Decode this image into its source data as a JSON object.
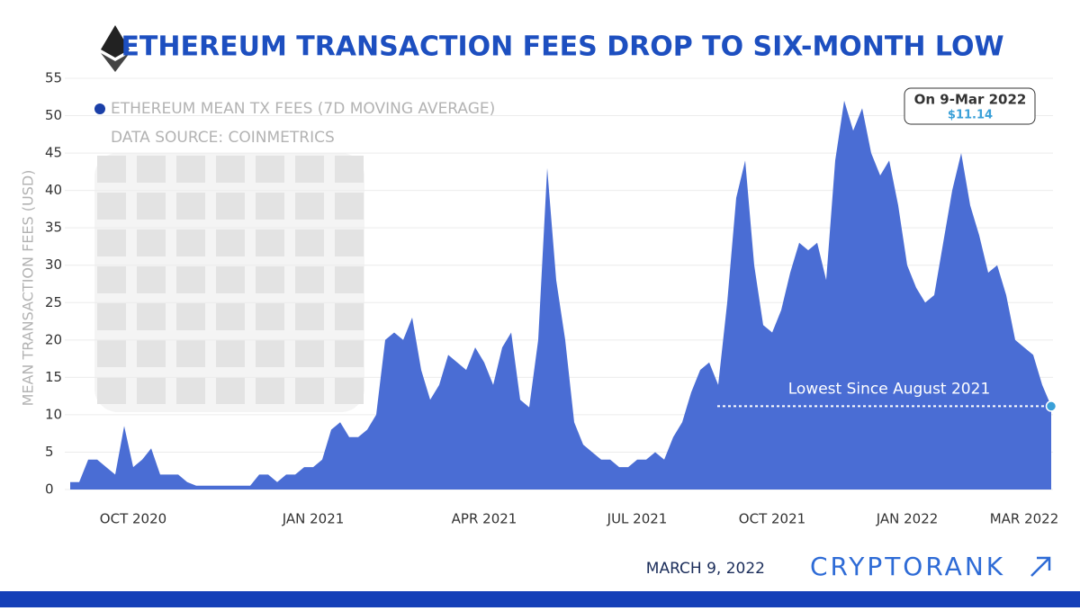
{
  "chart_data": {
    "type": "area",
    "title": "ETHEREUM TRANSACTION FEES DROP TO SIX-MONTH LOW",
    "legend_label": "ETHEREUM MEAN TX FEES (7D MOVING AVERAGE)",
    "source": "DATA SOURCE: COINMETRICS",
    "y_label": "MEAN TRANSACTION FEES (USD)",
    "color": "#4a6dd4",
    "categories": [
      null,
      null,
      null,
      null,
      null,
      null,
      null,
      "OCT 2020",
      null,
      null,
      null,
      null,
      null,
      null,
      null,
      null,
      null,
      null,
      null,
      null,
      null,
      null,
      null,
      null,
      null,
      null,
      null,
      "JAN 2021",
      null,
      null,
      null,
      null,
      null,
      null,
      null,
      null,
      null,
      null,
      null,
      null,
      null,
      null,
      null,
      null,
      null,
      null,
      "APR 2021",
      null,
      null,
      null,
      null,
      null,
      null,
      null,
      null,
      null,
      null,
      null,
      null,
      null,
      null,
      null,
      null,
      "JUL 2021",
      null,
      null,
      null,
      null,
      null,
      null,
      null,
      null,
      null,
      null,
      null,
      null,
      null,
      null,
      "OCT 2021",
      null,
      null,
      null,
      null,
      null,
      null,
      null,
      null,
      null,
      null,
      null,
      null,
      null,
      null,
      "JAN 2022",
      null,
      null,
      null,
      null,
      null,
      null,
      null,
      null,
      null,
      null,
      null,
      null,
      "MAR 2022",
      null,
      null,
      null
    ],
    "values": [
      1,
      1,
      4,
      4,
      3,
      2,
      8.5,
      3,
      4,
      5.5,
      2,
      2,
      2,
      1,
      0.5,
      0.5,
      0.5,
      0.5,
      0.5,
      0.5,
      0.5,
      2,
      2,
      1,
      2,
      2,
      3,
      3,
      4,
      8,
      9,
      7,
      7,
      8,
      10,
      20,
      21,
      20,
      23,
      16,
      12,
      14,
      18,
      17,
      16,
      19,
      17,
      14,
      19,
      21,
      12,
      11,
      20,
      43,
      28,
      20,
      9,
      6,
      5,
      4,
      4,
      3,
      3,
      4,
      4,
      5,
      4,
      7,
      9,
      13,
      16,
      17,
      14,
      25,
      39,
      44,
      30,
      22,
      21,
      24,
      29,
      33,
      32,
      33,
      28,
      44,
      52,
      48,
      51,
      45,
      42,
      44,
      38,
      30,
      27,
      25,
      26,
      33,
      40,
      45,
      38,
      34,
      29,
      30,
      26,
      20,
      19,
      18,
      14,
      11.14
    ],
    "ylim": [
      0,
      55
    ],
    "yticks": [
      0,
      5,
      10,
      15,
      20,
      25,
      30,
      35,
      40,
      45,
      50,
      55
    ],
    "grid": true,
    "annotations": {
      "date": "On 9-Mar 2022",
      "price": "$11.14",
      "note": "Lowest Since August 2021"
    },
    "footer": {
      "date": "MARCH 9, 2022",
      "brand": "CRYPTORANK"
    }
  }
}
